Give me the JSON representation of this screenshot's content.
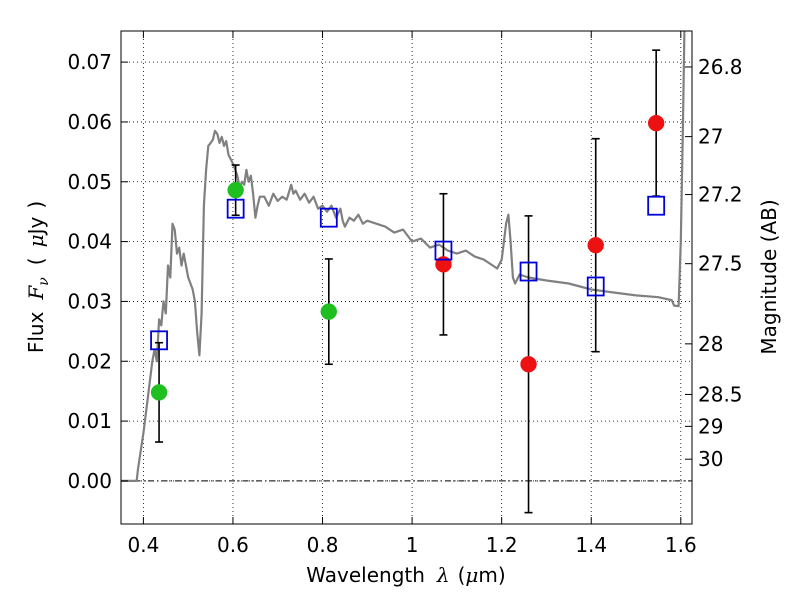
{
  "chart_data": {
    "type": "scatter",
    "xlabel_text": "Wavelength",
    "xlabel_symbol": "λ",
    "xlabel_unit_open": "(",
    "xlabel_unit_mu": "μ",
    "xlabel_unit_rest": "m)",
    "ylabel_text": "Flux",
    "ylabel_symbol": "F",
    "ylabel_sub": "ν",
    "ylabel_unit_open": "(",
    "ylabel_unit_mu": "μ",
    "ylabel_unit_rest": "Jy",
    "ylabel_unit_close": ")",
    "y2label": "Magnitude (AB)",
    "xlim": [
      0.35,
      1.625
    ],
    "ylim": [
      -0.0072,
      0.0752
    ],
    "grid": true,
    "xticks": [
      0.4,
      0.6,
      0.8,
      1.0,
      1.2,
      1.4,
      1.6
    ],
    "xtick_labels": [
      "0.4",
      "0.6",
      "0.8",
      "1",
      "1.2",
      "1.4",
      "1.6"
    ],
    "yticks": [
      0.0,
      0.01,
      0.02,
      0.03,
      0.04,
      0.05,
      0.06,
      0.07
    ],
    "ytick_labels": [
      "0.00",
      "0.01",
      "0.02",
      "0.03",
      "0.04",
      "0.05",
      "0.06",
      "0.07"
    ],
    "y2ticks": [
      {
        "mag": 26.8,
        "label": "26.8"
      },
      {
        "mag": 27.0,
        "label": "27"
      },
      {
        "mag": 27.2,
        "label": "27.2"
      },
      {
        "mag": 27.5,
        "label": "27.5"
      },
      {
        "mag": 28.0,
        "label": "28"
      },
      {
        "mag": 28.5,
        "label": "28.5"
      },
      {
        "mag": 29.0,
        "label": "29"
      },
      {
        "mag": 30.0,
        "label": "30"
      }
    ],
    "series": [
      {
        "marker": "circle",
        "color": "#1fbf1f",
        "points": [
          {
            "x": 0.435,
            "y": 0.0148,
            "err": 0.0083
          },
          {
            "x": 0.606,
            "y": 0.0486,
            "err": 0.0042
          },
          {
            "x": 0.814,
            "y": 0.0283,
            "err": 0.0088
          }
        ]
      },
      {
        "marker": "circle",
        "color": "#ee1111",
        "points": [
          {
            "x": 1.07,
            "y": 0.0362,
            "err": 0.0118
          },
          {
            "x": 1.26,
            "y": 0.0195,
            "err": 0.0248
          },
          {
            "x": 1.41,
            "y": 0.0394,
            "err": 0.0178
          },
          {
            "x": 1.545,
            "y": 0.0598,
            "err": 0.0122
          }
        ]
      },
      {
        "marker": "square-open",
        "color": "#0000dd",
        "points": [
          {
            "x": 0.435,
            "y": 0.0235
          },
          {
            "x": 0.606,
            "y": 0.0455
          },
          {
            "x": 0.814,
            "y": 0.044
          },
          {
            "x": 1.07,
            "y": 0.0385
          },
          {
            "x": 1.26,
            "y": 0.035
          },
          {
            "x": 1.41,
            "y": 0.0325
          },
          {
            "x": 1.545,
            "y": 0.046
          }
        ]
      },
      {
        "marker": "line",
        "color": "#808080",
        "points": [
          [
            0.35,
            0.0
          ],
          [
            0.385,
            0.0
          ],
          [
            0.388,
            0.002
          ],
          [
            0.4,
            0.008
          ],
          [
            0.41,
            0.014
          ],
          [
            0.42,
            0.02
          ],
          [
            0.425,
            0.022
          ],
          [
            0.43,
            0.02
          ],
          [
            0.435,
            0.027
          ],
          [
            0.44,
            0.026
          ],
          [
            0.445,
            0.03
          ],
          [
            0.45,
            0.028
          ],
          [
            0.455,
            0.036
          ],
          [
            0.46,
            0.034
          ],
          [
            0.465,
            0.043
          ],
          [
            0.47,
            0.042
          ],
          [
            0.475,
            0.038
          ],
          [
            0.48,
            0.039
          ],
          [
            0.485,
            0.036
          ],
          [
            0.49,
            0.038
          ],
          [
            0.5,
            0.034
          ],
          [
            0.51,
            0.032
          ],
          [
            0.515,
            0.03
          ],
          [
            0.52,
            0.025
          ],
          [
            0.525,
            0.021
          ],
          [
            0.53,
            0.028
          ],
          [
            0.535,
            0.046
          ],
          [
            0.54,
            0.052
          ],
          [
            0.545,
            0.056
          ],
          [
            0.55,
            0.0565
          ],
          [
            0.555,
            0.057
          ],
          [
            0.56,
            0.0585
          ],
          [
            0.565,
            0.058
          ],
          [
            0.57,
            0.0565
          ],
          [
            0.575,
            0.0575
          ],
          [
            0.58,
            0.056
          ],
          [
            0.585,
            0.0568
          ],
          [
            0.59,
            0.0545
          ],
          [
            0.6,
            0.053
          ],
          [
            0.61,
            0.051
          ],
          [
            0.615,
            0.049
          ],
          [
            0.62,
            0.05
          ],
          [
            0.625,
            0.0495
          ],
          [
            0.63,
            0.052
          ],
          [
            0.635,
            0.05
          ],
          [
            0.64,
            0.051
          ],
          [
            0.645,
            0.048
          ],
          [
            0.65,
            0.044
          ],
          [
            0.655,
            0.046
          ],
          [
            0.66,
            0.0475
          ],
          [
            0.67,
            0.0475
          ],
          [
            0.68,
            0.046
          ],
          [
            0.69,
            0.048
          ],
          [
            0.7,
            0.0468
          ],
          [
            0.71,
            0.0475
          ],
          [
            0.72,
            0.047
          ],
          [
            0.73,
            0.0495
          ],
          [
            0.735,
            0.048
          ],
          [
            0.74,
            0.0485
          ],
          [
            0.75,
            0.047
          ],
          [
            0.76,
            0.048
          ],
          [
            0.77,
            0.0465
          ],
          [
            0.78,
            0.0475
          ],
          [
            0.79,
            0.0455
          ],
          [
            0.8,
            0.046
          ],
          [
            0.81,
            0.045
          ],
          [
            0.82,
            0.046
          ],
          [
            0.83,
            0.044
          ],
          [
            0.84,
            0.0455
          ],
          [
            0.845,
            0.0435
          ],
          [
            0.85,
            0.0425
          ],
          [
            0.86,
            0.044
          ],
          [
            0.87,
            0.0435
          ],
          [
            0.88,
            0.0445
          ],
          [
            0.89,
            0.043
          ],
          [
            0.9,
            0.0435
          ],
          [
            0.92,
            0.043
          ],
          [
            0.94,
            0.0425
          ],
          [
            0.96,
            0.0415
          ],
          [
            0.98,
            0.042
          ],
          [
            1.0,
            0.04
          ],
          [
            1.02,
            0.0405
          ],
          [
            1.04,
            0.039
          ],
          [
            1.06,
            0.0395
          ],
          [
            1.08,
            0.0385
          ],
          [
            1.1,
            0.038
          ],
          [
            1.12,
            0.0385
          ],
          [
            1.14,
            0.0375
          ],
          [
            1.16,
            0.037
          ],
          [
            1.17,
            0.0365
          ],
          [
            1.18,
            0.036
          ],
          [
            1.19,
            0.0355
          ],
          [
            1.2,
            0.037
          ],
          [
            1.21,
            0.043
          ],
          [
            1.215,
            0.0445
          ],
          [
            1.22,
            0.04
          ],
          [
            1.225,
            0.034
          ],
          [
            1.23,
            0.033
          ],
          [
            1.24,
            0.0345
          ],
          [
            1.26,
            0.034
          ],
          [
            1.3,
            0.0335
          ],
          [
            1.35,
            0.033
          ],
          [
            1.4,
            0.032
          ],
          [
            1.45,
            0.0315
          ],
          [
            1.5,
            0.031
          ],
          [
            1.55,
            0.0307
          ],
          [
            1.58,
            0.0302
          ],
          [
            1.585,
            0.0293
          ],
          [
            1.595,
            0.0292
          ],
          [
            1.6,
            0.04
          ],
          [
            1.605,
            0.06
          ],
          [
            1.608,
            0.0752
          ]
        ]
      }
    ]
  }
}
